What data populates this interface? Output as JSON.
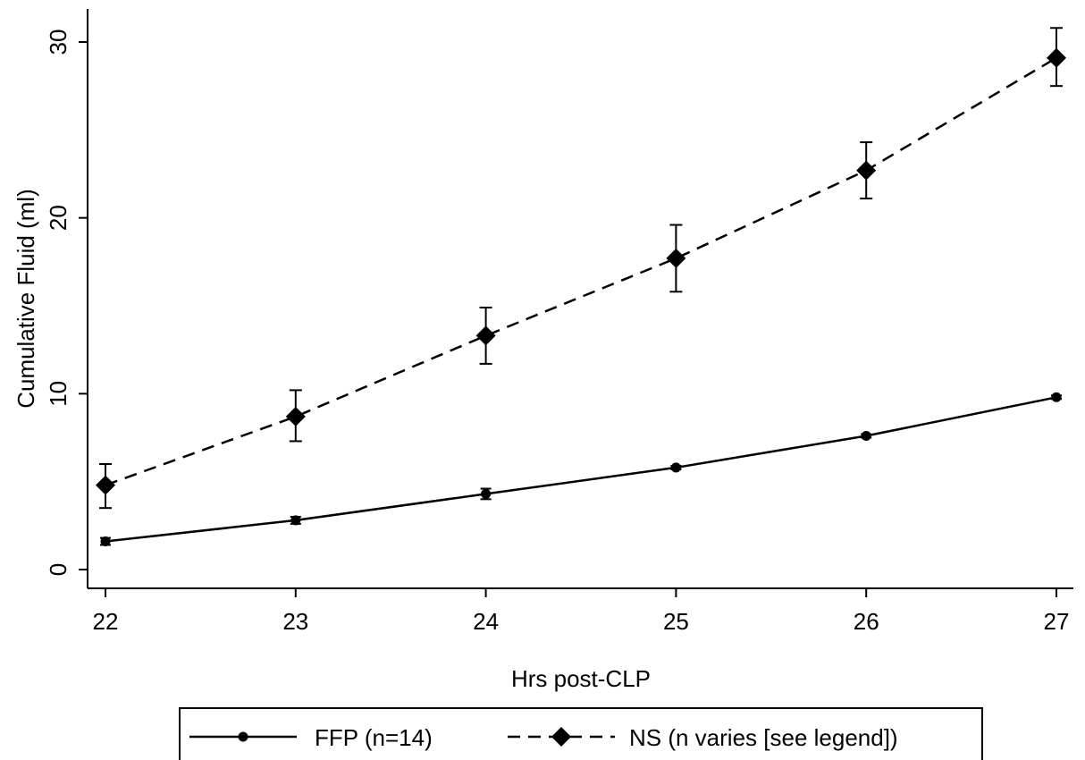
{
  "chart_data": {
    "type": "line",
    "xlabel": "Hrs post-CLP",
    "ylabel": "Cumulative Fluid (ml)",
    "xlim": [
      22,
      27
    ],
    "ylim": [
      0,
      30
    ],
    "x_ticks": [
      22,
      23,
      24,
      25,
      26,
      27
    ],
    "y_ticks": [
      0,
      10,
      20,
      30
    ],
    "grid": false,
    "legend_position": "bottom",
    "series": [
      {
        "name": "FFP (n=14)",
        "line_style": "solid",
        "marker": "circle",
        "color": "#000000",
        "x": [
          22,
          23,
          24,
          25,
          26,
          27
        ],
        "values": [
          1.6,
          2.8,
          4.3,
          5.8,
          7.6,
          9.8
        ],
        "err_low": [
          1.4,
          2.6,
          4.0,
          5.7,
          7.5,
          9.7
        ],
        "err_high": [
          1.8,
          3.0,
          4.6,
          5.9,
          7.7,
          9.9
        ]
      },
      {
        "name": "NS (n varies [see legend])",
        "line_style": "dashed",
        "marker": "diamond",
        "color": "#000000",
        "x": [
          22,
          23,
          24,
          25,
          26,
          27
        ],
        "values": [
          4.8,
          8.7,
          13.3,
          17.7,
          22.7,
          29.1
        ],
        "err_low": [
          3.5,
          7.3,
          11.7,
          15.8,
          21.1,
          27.5
        ],
        "err_high": [
          6.0,
          10.2,
          14.9,
          19.6,
          24.3,
          30.8
        ]
      }
    ]
  }
}
